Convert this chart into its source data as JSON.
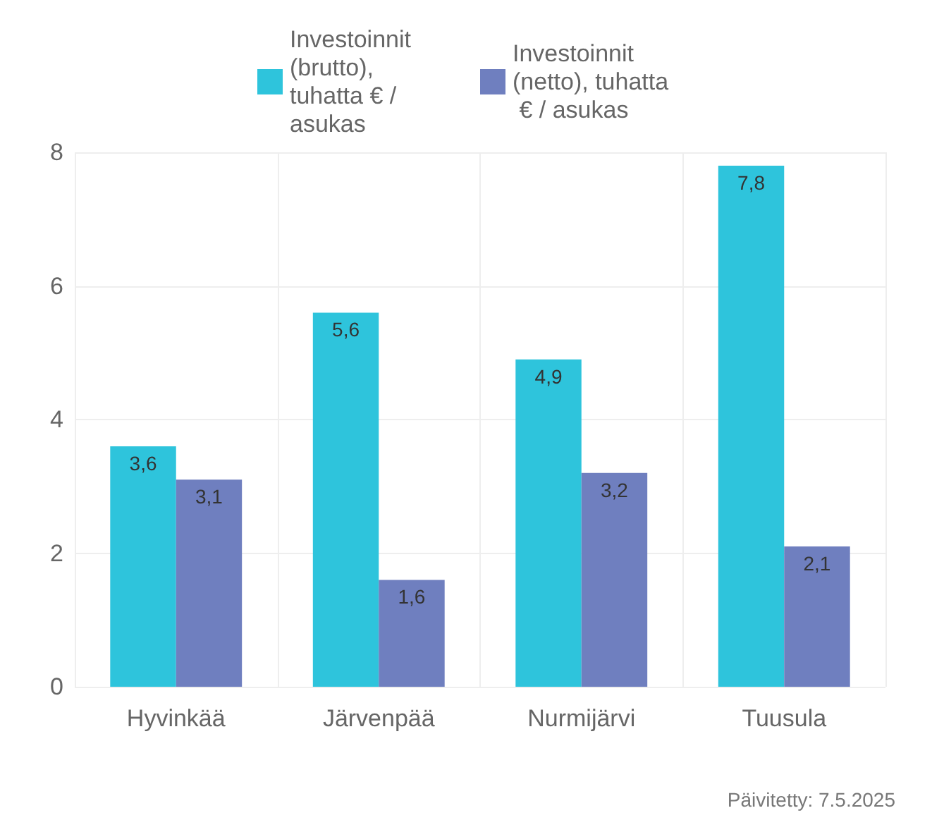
{
  "chart_data": {
    "type": "bar",
    "categories": [
      "Hyvinkää",
      "Järvenpää",
      "Nurmijärvi",
      "Tuusula"
    ],
    "series": [
      {
        "name": "Investoinnit (brutto), tuhatta € / asukas",
        "color": "#2ec4dc",
        "values": [
          3.6,
          5.6,
          4.9,
          7.8
        ],
        "value_labels": [
          "3,6",
          "5,6",
          "4,9",
          "7,8"
        ]
      },
      {
        "name": "Investoinnit (netto), tuhatta € / asukas",
        "color": "#6f7fbf",
        "values": [
          3.1,
          1.6,
          3.2,
          2.1
        ],
        "value_labels": [
          "3,1",
          "1,6",
          "3,2",
          "2,1"
        ]
      }
    ],
    "ylim": [
      0,
      8
    ],
    "yticks": [
      0,
      2,
      4,
      6,
      8
    ],
    "grid": true,
    "legend": "top",
    "annotations": [
      "Päivitetty: 7.5.2025"
    ]
  }
}
